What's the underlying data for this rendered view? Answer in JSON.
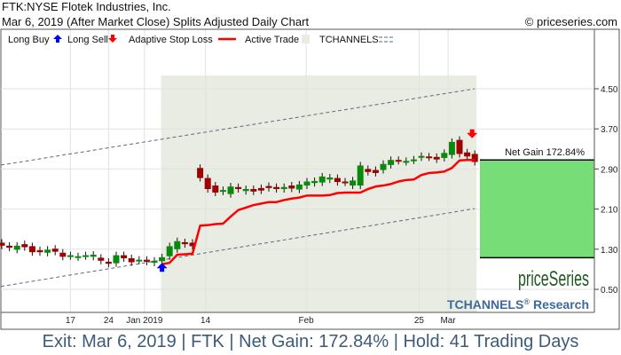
{
  "header": {
    "title": "FTK:NYSE Flotek Industries, Inc.",
    "subtitle": "Mar 6, 2019 (After Market Close)  Splits Adjusted Daily Chart",
    "copyright": "© priceseries.com"
  },
  "legend": {
    "long_buy": "Long Buy",
    "long_sell": "Long Sell",
    "stop_loss": "Adaptive Stop Loss",
    "active_trade": "Active Trade",
    "tchannels": "TCHANNELS"
  },
  "colors": {
    "up": "#0a8a0a",
    "down": "#a00000",
    "stop_line": "#ff0000",
    "active_trade_bg": "#e9ece3",
    "gain_box": "#77dd77",
    "buy_arrow": "#0000ff",
    "sell_arrow": "#ff0000",
    "channel": "#5a6a80",
    "caption": "#3d5a78",
    "brand_green": "#1f5a1f",
    "brand_blue": "#3d6a9a"
  },
  "branding": {
    "logo": "priceSeries",
    "research": "TCHANNELS",
    "research_suffix": "Research",
    "reg": "®"
  },
  "caption": "Exit: Mar 6, 2019 | FTK | Net Gain: 172.84% | Hold: 41 Trading Days",
  "chart_data": {
    "type": "candlestick",
    "y_ticks": [
      "4.50",
      "3.70",
      "2.90",
      "2.10",
      "1.30",
      "0.50"
    ],
    "ylim": [
      0.0,
      4.96
    ],
    "x_ticks": [
      {
        "label": "17",
        "index": 9
      },
      {
        "label": "24",
        "index": 14
      },
      {
        "label": "Jan 2019",
        "index": 18.7
      },
      {
        "label": "14",
        "index": 26.7
      },
      {
        "label": "Feb",
        "index": 39.9
      },
      {
        "label": "25",
        "index": 54.7
      },
      {
        "label": "Mar",
        "index": 58.5
      }
    ],
    "grid": true,
    "candles_open_close": [
      [
        1.43,
        1.37
      ],
      [
        1.37,
        1.33
      ],
      [
        1.29,
        1.37
      ],
      [
        1.4,
        1.34
      ],
      [
        1.36,
        1.24
      ],
      [
        1.28,
        1.24
      ],
      [
        1.23,
        1.29
      ],
      [
        1.31,
        1.25
      ],
      [
        1.23,
        1.15
      ],
      [
        1.16,
        1.18
      ],
      [
        1.14,
        1.16
      ],
      [
        1.16,
        1.18
      ],
      [
        1.15,
        1.19
      ],
      [
        1.13,
        1.07
      ],
      [
        1.05,
        1.01
      ],
      [
        1.02,
        1.18
      ],
      [
        1.18,
        1.12
      ],
      [
        1.12,
        1.04
      ],
      [
        1.07,
        1.09
      ],
      [
        1.09,
        1.05
      ],
      [
        1.03,
        1.07
      ],
      [
        1.06,
        1.14
      ],
      [
        1.16,
        1.36
      ],
      [
        1.3,
        1.46
      ],
      [
        1.44,
        1.4
      ],
      [
        1.43,
        1.36
      ],
      [
        2.92,
        2.72
      ],
      [
        2.72,
        2.5
      ],
      [
        2.57,
        2.43
      ],
      [
        2.45,
        2.48
      ],
      [
        2.4,
        2.55
      ],
      [
        2.54,
        2.5
      ],
      [
        2.46,
        2.5
      ],
      [
        2.5,
        2.45
      ],
      [
        2.52,
        2.47
      ],
      [
        2.56,
        2.52
      ],
      [
        2.54,
        2.5
      ],
      [
        2.5,
        2.54
      ],
      [
        2.57,
        2.51
      ],
      [
        2.49,
        2.59
      ],
      [
        2.57,
        2.65
      ],
      [
        2.62,
        2.66
      ],
      [
        2.63,
        2.75
      ],
      [
        2.69,
        2.73
      ],
      [
        2.72,
        2.64
      ],
      [
        2.65,
        2.63
      ],
      [
        2.57,
        2.67
      ],
      [
        2.57,
        2.97
      ],
      [
        2.9,
        2.84
      ],
      [
        2.88,
        2.82
      ],
      [
        2.88,
        3.0
      ],
      [
        2.98,
        3.08
      ],
      [
        3.08,
        3.06
      ],
      [
        3.04,
        3.06
      ],
      [
        3.07,
        3.09
      ],
      [
        3.13,
        3.16
      ],
      [
        3.15,
        3.13
      ],
      [
        3.14,
        3.09
      ],
      [
        3.12,
        3.22
      ],
      [
        3.18,
        3.44
      ],
      [
        3.48,
        3.2
      ],
      [
        3.23,
        3.15
      ],
      [
        3.2,
        3.04
      ]
    ],
    "stop_loss": {
      "start_index": 21,
      "values": [
        1.0,
        1.03,
        1.19,
        1.2,
        1.21,
        1.77,
        1.78,
        1.8,
        1.81,
        1.95,
        2.08,
        2.13,
        2.18,
        2.21,
        2.24,
        2.24,
        2.28,
        2.31,
        2.33,
        2.37,
        2.37,
        2.37,
        2.38,
        2.42,
        2.43,
        2.43,
        2.43,
        2.5,
        2.55,
        2.57,
        2.6,
        2.65,
        2.68,
        2.69,
        2.78,
        2.82,
        2.83,
        2.85,
        2.92,
        3.07,
        3.08,
        3.08
      ]
    },
    "active_trade": {
      "start_index": 21,
      "end_index": 62
    },
    "buy_signal": {
      "index": 21,
      "price": 0.92
    },
    "sell_signal": {
      "index": 62,
      "price": 3.62
    },
    "channels": {
      "upper": [
        [
          0,
          2.98
        ],
        [
          62,
          4.5
        ]
      ],
      "lower": [
        [
          0,
          0.56
        ],
        [
          62,
          2.11
        ]
      ]
    },
    "net_gain": {
      "label": "Net Gain 172.84%",
      "entry": 1.13,
      "exit": 3.08
    }
  }
}
